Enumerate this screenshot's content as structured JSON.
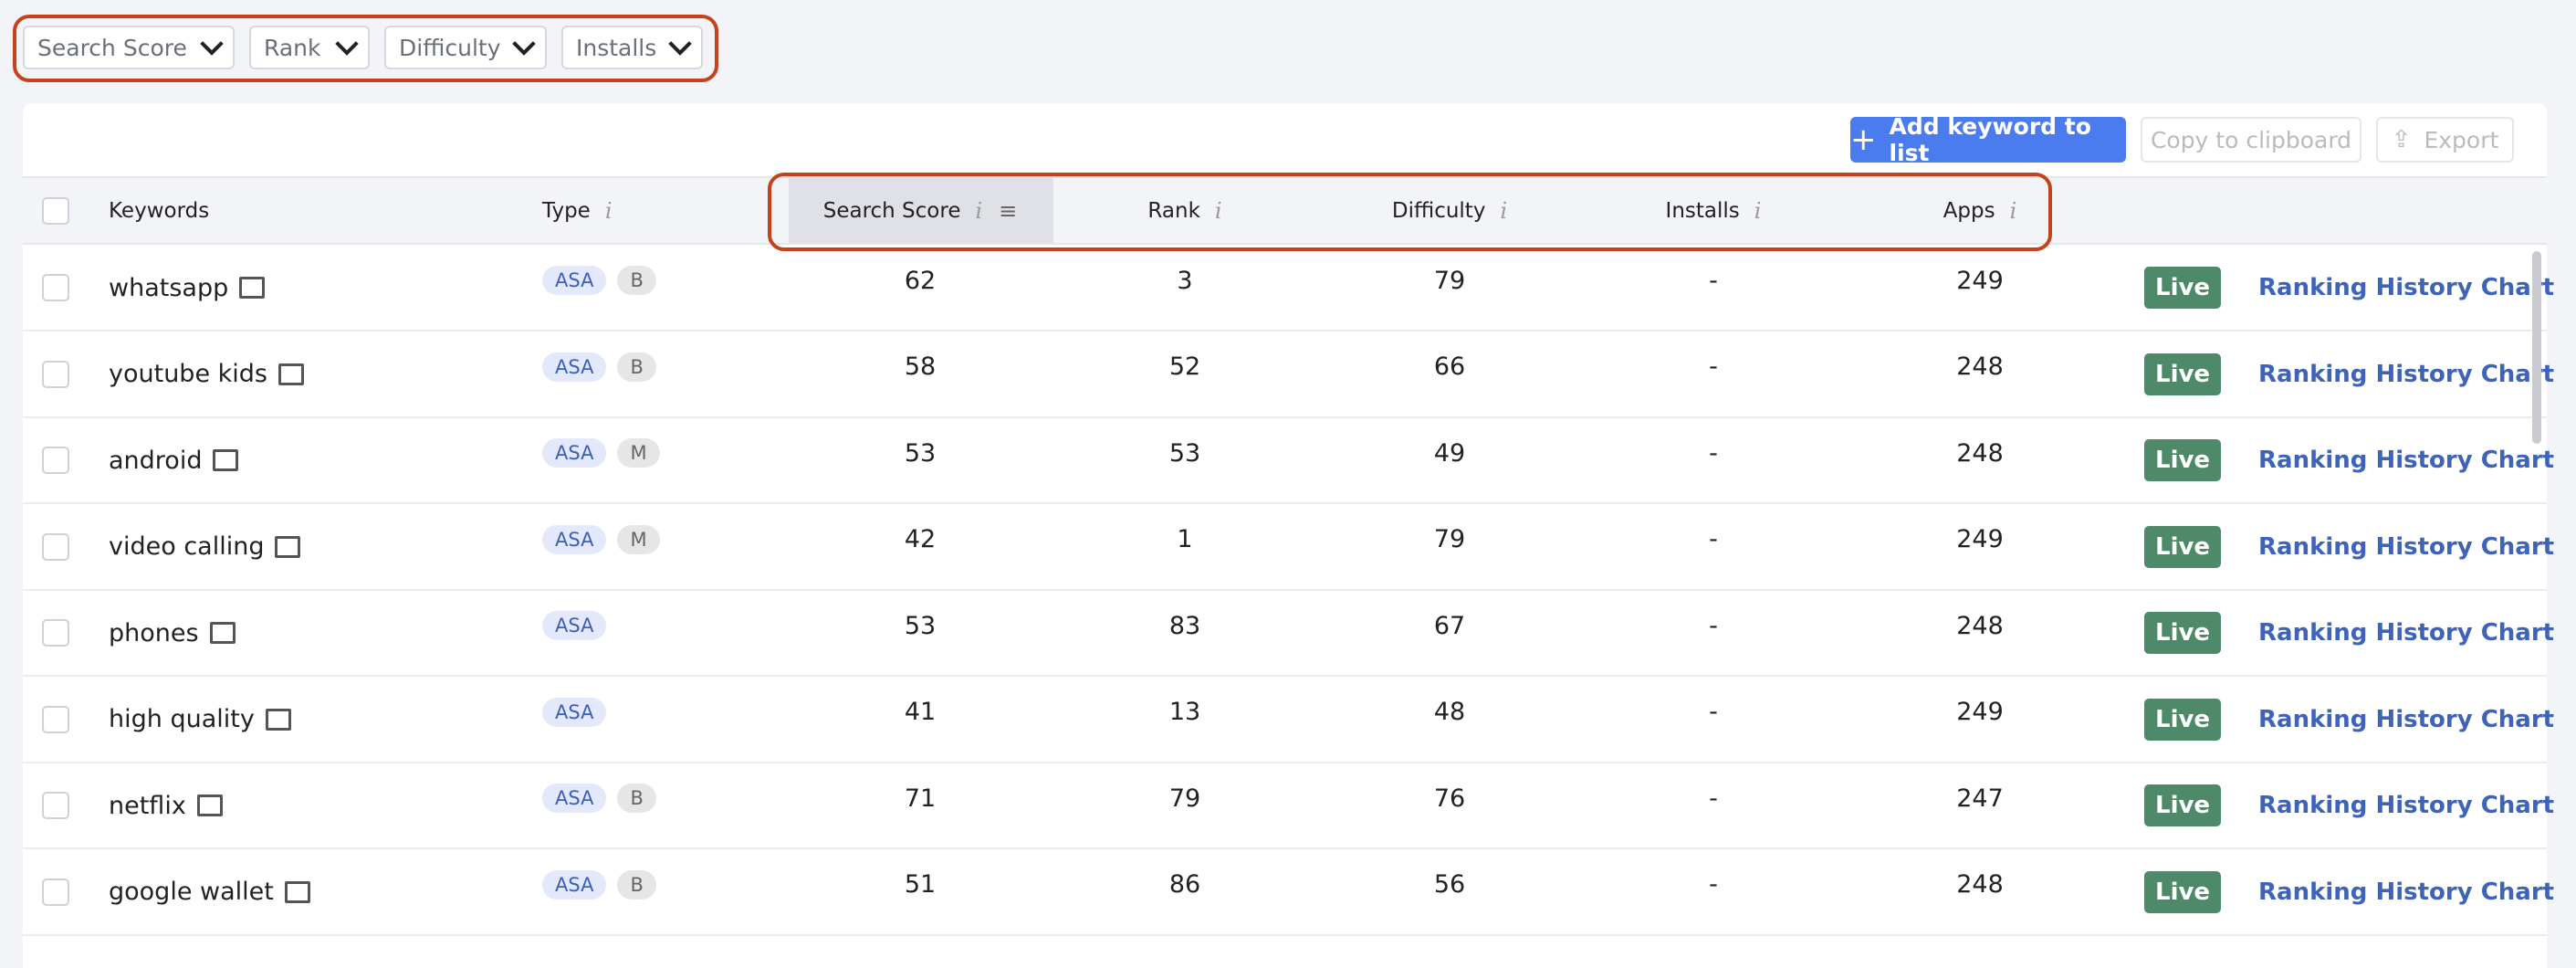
{
  "filters": [
    "Search Score",
    "Rank",
    "Difficulty",
    "Installs"
  ],
  "toolbar": {
    "add": "Add keyword to list",
    "copy": "Copy to clipboard",
    "export": "Export"
  },
  "table": {
    "columns": [
      "Keywords",
      "Type",
      "Search Score",
      "Rank",
      "Difficulty",
      "Installs",
      "Apps"
    ],
    "rows": [
      {
        "keyword": "whatsapp",
        "types": [
          "ASA",
          "B"
        ],
        "search_score": 62,
        "rank": 3,
        "difficulty": 79,
        "installs": "-",
        "apps": 249,
        "status": "Live",
        "link": "Ranking History Chart"
      },
      {
        "keyword": "youtube kids",
        "types": [
          "ASA",
          "B"
        ],
        "search_score": 58,
        "rank": 52,
        "difficulty": 66,
        "installs": "-",
        "apps": 248,
        "status": "Live",
        "link": "Ranking History Chart"
      },
      {
        "keyword": "android",
        "types": [
          "ASA",
          "M"
        ],
        "search_score": 53,
        "rank": 53,
        "difficulty": 49,
        "installs": "-",
        "apps": 248,
        "status": "Live",
        "link": "Ranking History Chart"
      },
      {
        "keyword": "video calling",
        "types": [
          "ASA",
          "M"
        ],
        "search_score": 42,
        "rank": 1,
        "difficulty": 79,
        "installs": "-",
        "apps": 249,
        "status": "Live",
        "link": "Ranking History Chart"
      },
      {
        "keyword": "phones",
        "types": [
          "ASA"
        ],
        "search_score": 53,
        "rank": 83,
        "difficulty": 67,
        "installs": "-",
        "apps": 248,
        "status": "Live",
        "link": "Ranking History Chart"
      },
      {
        "keyword": "high quality",
        "types": [
          "ASA"
        ],
        "search_score": 41,
        "rank": 13,
        "difficulty": 48,
        "installs": "-",
        "apps": 249,
        "status": "Live",
        "link": "Ranking History Chart"
      },
      {
        "keyword": "netflix",
        "types": [
          "ASA",
          "B"
        ],
        "search_score": 71,
        "rank": 79,
        "difficulty": 76,
        "installs": "-",
        "apps": 247,
        "status": "Live",
        "link": "Ranking History Chart"
      },
      {
        "keyword": "google wallet",
        "types": [
          "ASA",
          "B"
        ],
        "search_score": 51,
        "rank": 86,
        "difficulty": 56,
        "installs": "-",
        "apps": 248,
        "status": "Live",
        "link": "Ranking History Chart"
      }
    ]
  }
}
